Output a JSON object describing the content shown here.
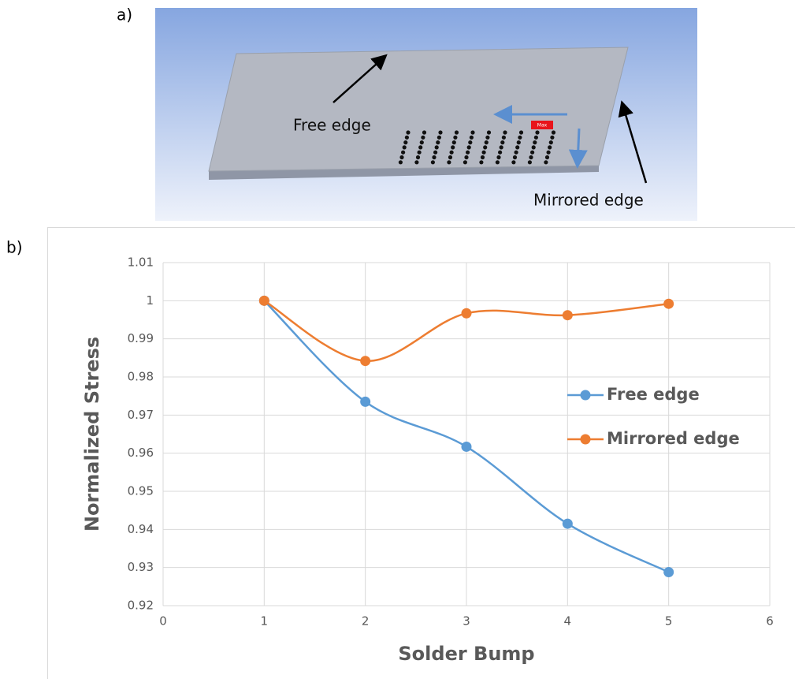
{
  "panel_a": {
    "label": "a)",
    "free_edge": "Free edge",
    "mirrored_edge": "Mirrored edge",
    "max_tag": "Max"
  },
  "panel_b_label": "b)",
  "chart_data": {
    "type": "line",
    "x_label": "Solder Bump",
    "y_label": "Normalized Stress",
    "x": [
      1,
      2,
      3,
      4,
      5
    ],
    "series": [
      {
        "name": "Free edge",
        "color": "#5b9bd5",
        "values": [
          1,
          0.9735,
          0.9617,
          0.9415,
          0.9288
        ]
      },
      {
        "name": "Mirrored edge",
        "color": "#ed7d31",
        "values": [
          1,
          0.9842,
          0.9967,
          0.9962,
          0.9992
        ]
      }
    ],
    "xlim": [
      0,
      6
    ],
    "xticks": [
      0,
      1,
      2,
      3,
      4,
      5,
      6
    ],
    "ylim": [
      0.92,
      1.01
    ],
    "yticks": [
      0.92,
      0.93,
      0.94,
      0.95,
      0.96,
      0.97,
      0.98,
      0.99,
      1,
      1.01
    ],
    "grid": true,
    "smooth": true,
    "legend": "right"
  }
}
